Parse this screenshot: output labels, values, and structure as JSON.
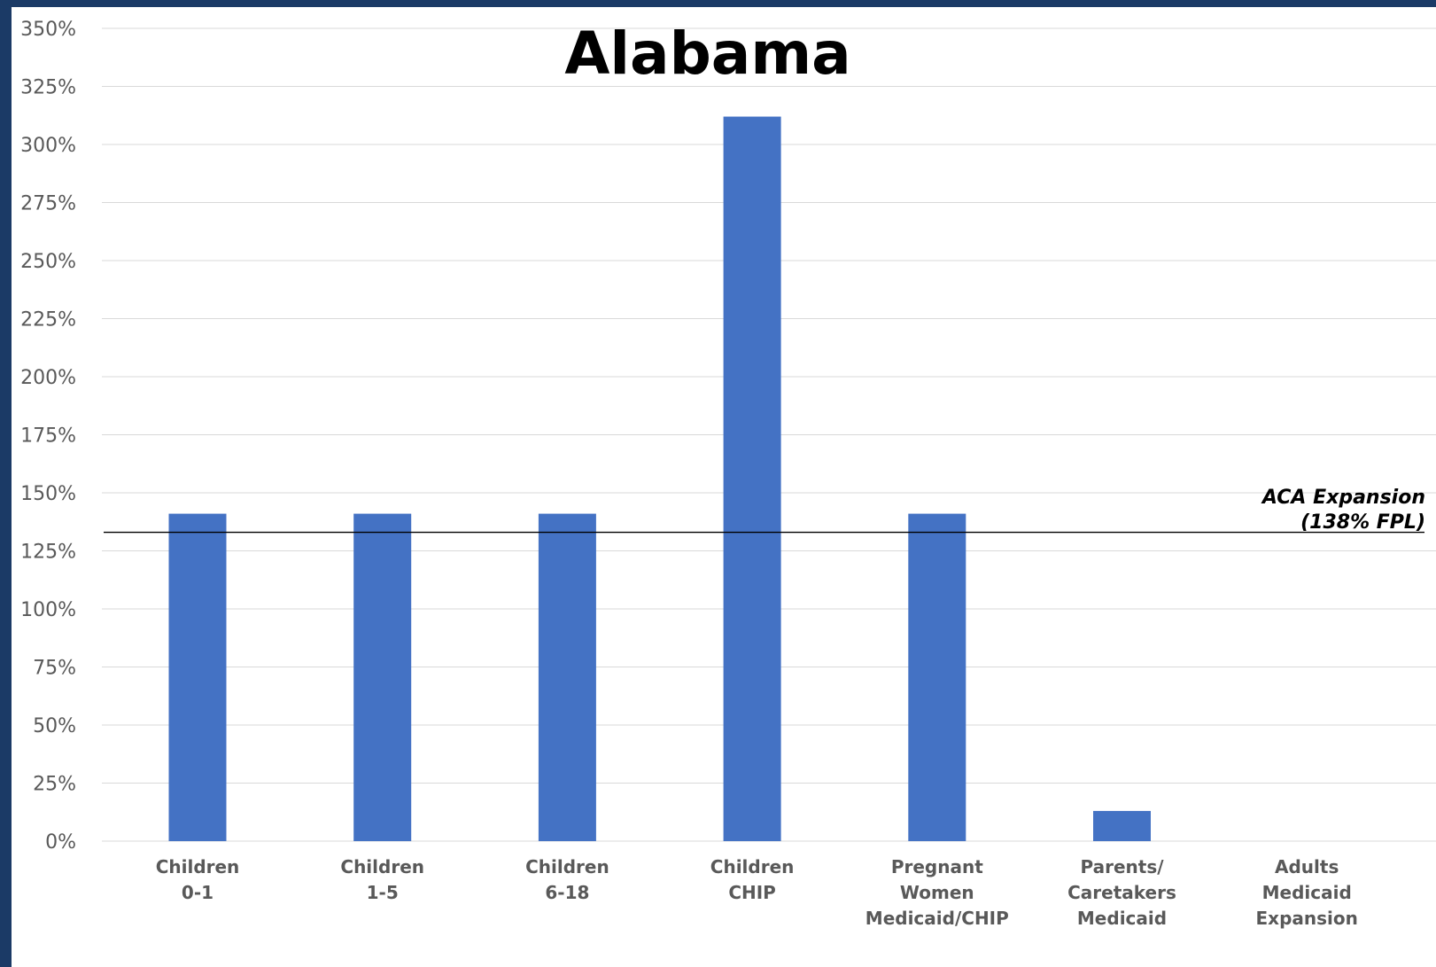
{
  "chart_data": {
    "type": "bar",
    "title": "Alabama",
    "xlabel": "",
    "ylabel": "",
    "ylim": [
      0,
      350
    ],
    "yticks": [
      0,
      25,
      50,
      75,
      100,
      125,
      150,
      175,
      200,
      225,
      250,
      275,
      300,
      325,
      350
    ],
    "ytick_suffix": "%",
    "grid": true,
    "categories": [
      [
        "Children",
        "0-1"
      ],
      [
        "Children",
        "1-5"
      ],
      [
        "Children",
        "6-18"
      ],
      [
        "Children",
        "CHIP"
      ],
      [
        "Pregnant",
        "Women",
        "Medicaid/CHIP"
      ],
      [
        "Parents/",
        "Caretakers",
        "Medicaid"
      ],
      [
        "Adults",
        "Medicaid",
        "Expansion"
      ]
    ],
    "values": [
      141,
      141,
      141,
      312,
      141,
      13,
      0
    ],
    "bar_color": "#4472c4",
    "reference_line": {
      "value": 133,
      "label_lines": [
        "ACA Expansion",
        "(138% FPL)"
      ],
      "color": "#000000"
    }
  }
}
